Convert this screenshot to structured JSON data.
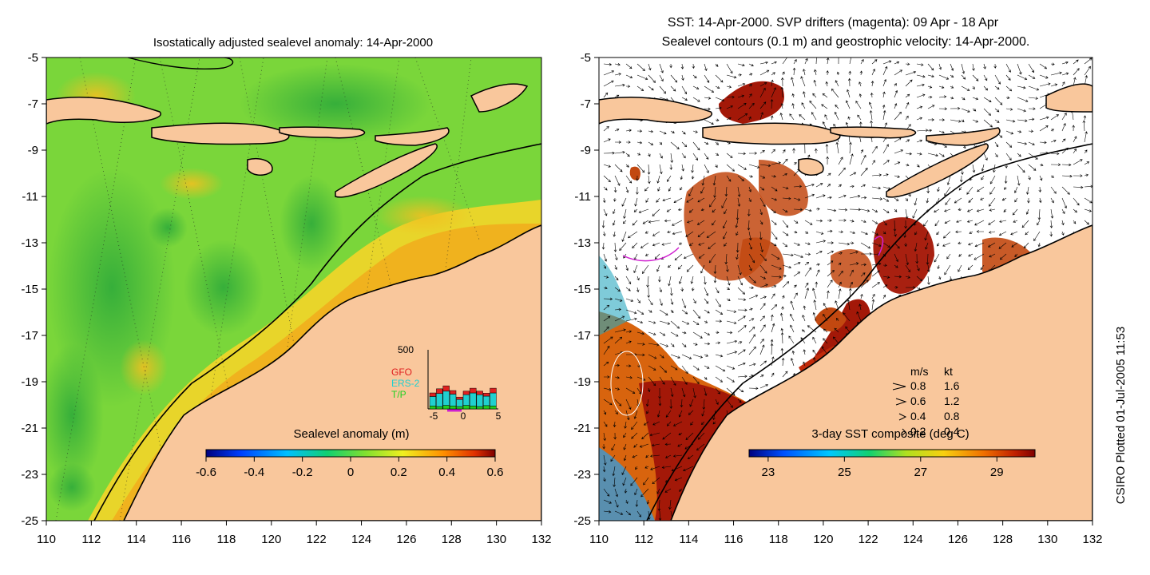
{
  "left_panel": {
    "title": "Isostatically adjusted sealevel anomaly: 14-Apr-2000",
    "colorbar": {
      "label": "Sealevel anomaly (m)",
      "ticks": [
        "-0.6",
        "-0.4",
        "-0.2",
        "0",
        "0.2",
        "0.4",
        "0.6"
      ],
      "min": -0.6,
      "max": 0.6
    },
    "inset": {
      "ymax_label": "500",
      "x_ticks": [
        "-5",
        "0",
        "5"
      ],
      "legend": [
        {
          "name": "GFO",
          "color": "#e02020"
        },
        {
          "name": "ERS-2",
          "color": "#20d0d0"
        },
        {
          "name": "T/P",
          "color": "#20d020"
        }
      ],
      "bars_tp": [
        25,
        20,
        30,
        25,
        20,
        30,
        25,
        20,
        28,
        25
      ],
      "bars_ers": [
        80,
        110,
        120,
        100,
        60,
        90,
        110,
        100,
        80,
        110
      ],
      "bars_gfo": [
        30,
        40,
        45,
        30,
        20,
        30,
        40,
        30,
        25,
        40
      ],
      "ymax": 500
    }
  },
  "right_panel": {
    "title_line1": "SST: 14-Apr-2000. SVP drifters (magenta): 09 Apr - 18 Apr",
    "title_line2": "Sealevel contours (0.1 m) and geostrophic velocity: 14-Apr-2000.",
    "colorbar": {
      "label": "3-day SST composite (deg C)",
      "ticks": [
        "23",
        "25",
        "27",
        "29"
      ],
      "min": 22.5,
      "max": 30
    },
    "velocity_legend": {
      "header_ms": "m/s",
      "header_kt": "kt",
      "rows": [
        {
          "ms": "0.8",
          "kt": "1.6"
        },
        {
          "ms": "0.6",
          "kt": "1.2"
        },
        {
          "ms": "0.4",
          "kt": "0.8"
        },
        {
          "ms": "0.2",
          "kt": "0.4"
        }
      ]
    }
  },
  "axes": {
    "lat_ticks": [
      "-5",
      "-7",
      "-9",
      "-11",
      "-13",
      "-15",
      "-17",
      "-19",
      "-21",
      "-23",
      "-25"
    ],
    "lon_ticks": [
      "110",
      "112",
      "114",
      "116",
      "118",
      "120",
      "122",
      "124",
      "126",
      "128",
      "130",
      "132"
    ],
    "lat_range": [
      -25,
      -5
    ],
    "lon_range": [
      110,
      132
    ]
  },
  "credit": "CSIRO Plotted 01-Jul-2005 11:53",
  "colors": {
    "land": "#f9c79c",
    "sea_green": "#6cd23a",
    "sea_yellow": "#d8e81c",
    "sea_orange": "#f0b21e",
    "sst_dark": "#a31808",
    "sst_mid": "#d8640e"
  }
}
